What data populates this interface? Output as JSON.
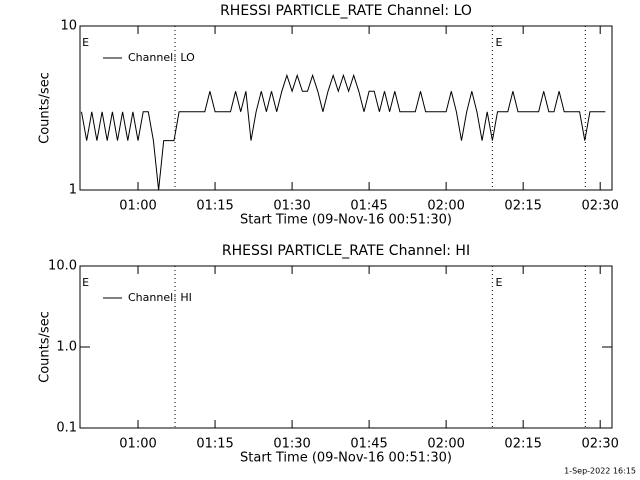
{
  "chart_data": [
    {
      "type": "line",
      "title": "RHESSI PARTICLE_RATE Channel: LO",
      "xlabel": "Start Time (09-Nov-16 00:51:30)",
      "ylabel": "Counts/sec",
      "log_y": true,
      "xlim": [
        48.7,
        152.3
      ],
      "ylim": [
        1,
        10
      ],
      "xticks": [
        {
          "value": 60,
          "label": "01:00"
        },
        {
          "value": 75,
          "label": "01:15"
        },
        {
          "value": 90,
          "label": "01:30"
        },
        {
          "value": 105,
          "label": "01:45"
        },
        {
          "value": 120,
          "label": "02:00"
        },
        {
          "value": 135,
          "label": "02:15"
        },
        {
          "value": 150,
          "label": "02:30"
        }
      ],
      "yticks": [
        1,
        10
      ],
      "vlines": [
        67.2,
        129,
        147.1
      ],
      "annotations": [
        {
          "text": "E",
          "x": 49.5
        },
        {
          "text": "E",
          "x": 130
        }
      ],
      "x": [
        49,
        50,
        51,
        52,
        53,
        54,
        55,
        56,
        57,
        58,
        59,
        60,
        61,
        62,
        63,
        64,
        65,
        66,
        67,
        68,
        69,
        70,
        71,
        72,
        73,
        74,
        75,
        76,
        77,
        78,
        79,
        80,
        81,
        82,
        83,
        84,
        85,
        86,
        87,
        88,
        89,
        90,
        91,
        92,
        93,
        94,
        95,
        96,
        97,
        98,
        99,
        100,
        101,
        102,
        103,
        104,
        105,
        106,
        107,
        108,
        109,
        110,
        111,
        112,
        113,
        114,
        115,
        116,
        117,
        118,
        119,
        120,
        121,
        122,
        123,
        124,
        125,
        126,
        127,
        128,
        129,
        130,
        131,
        132,
        133,
        134,
        135,
        136,
        137,
        138,
        139,
        140,
        141,
        142,
        143,
        144,
        145,
        146,
        147,
        148,
        149,
        150,
        151
      ],
      "series": [
        {
          "name": "Channel: LO",
          "color": "#000000",
          "values": [
            3,
            2,
            3,
            2,
            3,
            2,
            3,
            2,
            3,
            2,
            3,
            2,
            3,
            3,
            2,
            1,
            2,
            2,
            2,
            3,
            3,
            3,
            3,
            3,
            3,
            4,
            3,
            3,
            3,
            3,
            4,
            3,
            4,
            2,
            3,
            4,
            3,
            4,
            3,
            4,
            5,
            4,
            5,
            4,
            4,
            5,
            4,
            3,
            4,
            5,
            4,
            5,
            4,
            5,
            4,
            3,
            4,
            4,
            3,
            4,
            3,
            4,
            3,
            3,
            3,
            3,
            4,
            3,
            3,
            3,
            3,
            3,
            4,
            3,
            2,
            3,
            4,
            3,
            2,
            3,
            2,
            3,
            3,
            3,
            4,
            3,
            3,
            3,
            3,
            3,
            4,
            3,
            3,
            4,
            3,
            3,
            3,
            3,
            2,
            3,
            3,
            3,
            3
          ]
        }
      ]
    },
    {
      "type": "line",
      "title": "RHESSI PARTICLE_RATE Channel: HI",
      "xlabel": "Start Time (09-Nov-16 00:51:30)",
      "ylabel": "Counts/sec",
      "log_y": true,
      "xlim": [
        48.7,
        152.3
      ],
      "ylim": [
        0.1,
        10
      ],
      "xticks": [
        {
          "value": 60,
          "label": "01:00"
        },
        {
          "value": 75,
          "label": "01:15"
        },
        {
          "value": 90,
          "label": "01:30"
        },
        {
          "value": 105,
          "label": "01:45"
        },
        {
          "value": 120,
          "label": "02:00"
        },
        {
          "value": 135,
          "label": "02:15"
        },
        {
          "value": 150,
          "label": "02:30"
        }
      ],
      "yticks": [
        0.1,
        {
          "value": 1,
          "label": "1.0"
        },
        {
          "value": 10,
          "label": "10.0"
        }
      ],
      "vlines": [
        67.2,
        129,
        147.1
      ],
      "annotations": [
        {
          "text": "E",
          "x": 49.5
        },
        {
          "text": "E",
          "x": 130
        }
      ],
      "x": [],
      "series": [
        {
          "name": "Channel: HI",
          "color": "#000000",
          "values": []
        }
      ]
    }
  ],
  "footer": "1-Sep-2022 16:15"
}
